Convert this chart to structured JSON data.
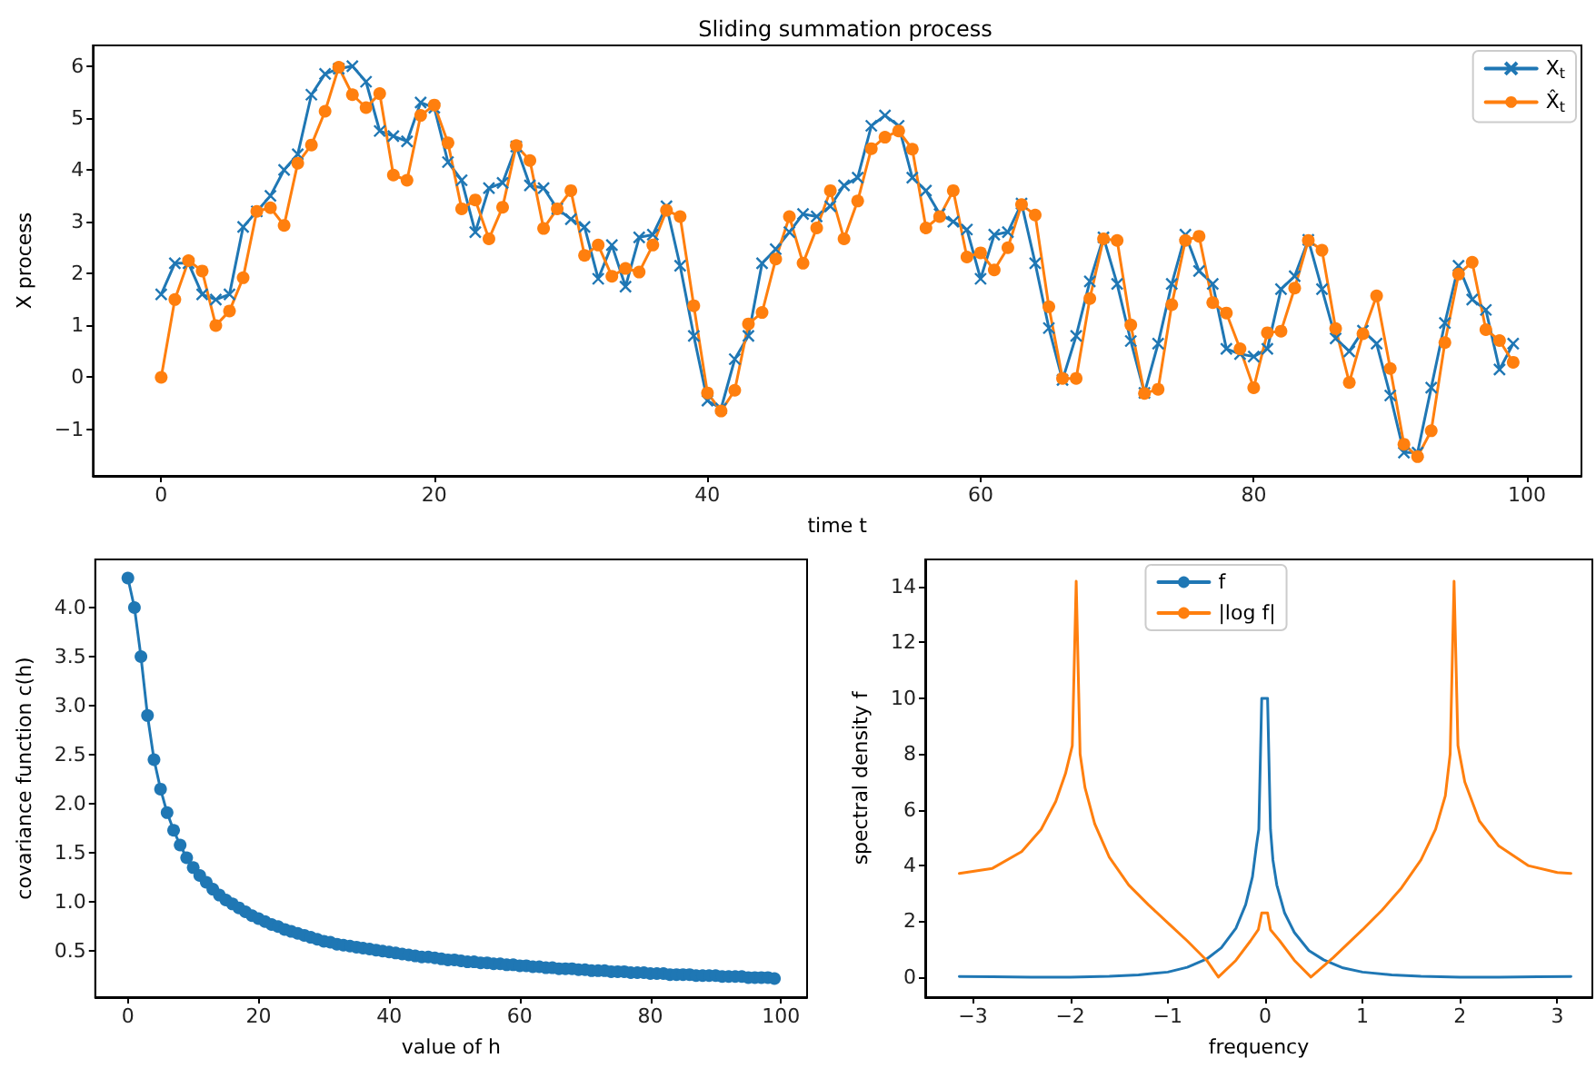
{
  "chart_data": [
    {
      "type": "line",
      "title": "Sliding summation process",
      "xlabel": "time t",
      "ylabel": "X process",
      "legend": "top right",
      "xlim": [
        -5,
        104
      ],
      "ylim": [
        -1.9,
        6.4
      ],
      "xticks": [
        0,
        20,
        40,
        60,
        80,
        100
      ],
      "yticks": [
        -1,
        0,
        1,
        2,
        3,
        4,
        5,
        6
      ],
      "x": [
        0,
        1,
        2,
        3,
        4,
        5,
        6,
        7,
        8,
        9,
        10,
        11,
        12,
        13,
        14,
        15,
        16,
        17,
        18,
        19,
        20,
        21,
        22,
        23,
        24,
        25,
        26,
        27,
        28,
        29,
        30,
        31,
        32,
        33,
        34,
        35,
        36,
        37,
        38,
        39,
        40,
        41,
        42,
        43,
        44,
        45,
        46,
        47,
        48,
        49,
        50,
        51,
        52,
        53,
        54,
        55,
        56,
        57,
        58,
        59,
        60,
        61,
        62,
        63,
        64,
        65,
        66,
        67,
        68,
        69,
        70,
        71,
        72,
        73,
        74,
        75,
        76,
        77,
        78,
        79,
        80,
        81,
        82,
        83,
        84,
        85,
        86,
        87,
        88,
        89,
        90,
        91,
        92,
        93,
        94,
        95,
        96,
        97,
        98,
        99
      ],
      "series": [
        {
          "name": "X$_{t}$",
          "color": "#1f77b4",
          "marker": "cross",
          "values": [
            1.6,
            2.2,
            2.2,
            1.6,
            1.5,
            1.6,
            2.9,
            3.2,
            3.5,
            4.0,
            4.3,
            5.45,
            5.85,
            5.95,
            6.0,
            5.7,
            4.75,
            4.65,
            4.55,
            5.3,
            5.2,
            4.15,
            3.8,
            2.8,
            3.65,
            3.75,
            4.45,
            3.7,
            3.65,
            3.25,
            3.05,
            2.9,
            1.9,
            2.55,
            1.75,
            2.7,
            2.75,
            3.3,
            2.15,
            0.8,
            -0.45,
            -0.6,
            0.35,
            0.8,
            2.2,
            2.47,
            2.8,
            3.15,
            3.1,
            3.3,
            3.7,
            3.85,
            4.85,
            5.05,
            4.85,
            3.85,
            3.6,
            3.15,
            3.0,
            2.85,
            1.9,
            2.75,
            2.8,
            3.35,
            2.2,
            0.95,
            -0.05,
            0.8,
            1.85,
            2.7,
            1.8,
            0.7,
            -0.3,
            0.65,
            1.8,
            2.75,
            2.05,
            1.8,
            0.55,
            0.45,
            0.4,
            0.55,
            1.7,
            1.95,
            2.65,
            1.7,
            0.75,
            0.5,
            0.9,
            0.65,
            -0.35,
            -1.45,
            -1.45,
            -0.2,
            1.05,
            2.15,
            1.5,
            1.3,
            0.15,
            0.65
          ]
        },
        {
          "name": "X̂$_{t}$",
          "color": "#ff7f0e",
          "marker": "circle",
          "values": [
            0.0,
            1.5,
            2.25,
            2.05,
            1.0,
            1.28,
            1.92,
            3.2,
            3.27,
            2.93,
            4.13,
            4.48,
            5.13,
            5.98,
            5.45,
            5.2,
            5.47,
            3.9,
            3.8,
            5.05,
            5.25,
            4.52,
            3.25,
            3.42,
            2.67,
            3.28,
            4.47,
            4.18,
            2.87,
            3.25,
            3.6,
            2.35,
            2.55,
            1.95,
            2.1,
            2.03,
            2.55,
            3.22,
            3.1,
            1.38,
            -0.3,
            -0.65,
            -0.25,
            1.03,
            1.25,
            2.28,
            3.1,
            2.2,
            2.88,
            3.6,
            2.67,
            3.4,
            4.41,
            4.63,
            4.75,
            4.4,
            2.88,
            3.1,
            3.6,
            2.32,
            2.4,
            2.07,
            2.5,
            3.33,
            3.13,
            1.36,
            -0.02,
            -0.02,
            1.52,
            2.67,
            2.64,
            1.01,
            -0.31,
            -0.23,
            1.4,
            2.64,
            2.72,
            1.44,
            1.24,
            0.55,
            -0.2,
            0.86,
            0.89,
            1.72,
            2.64,
            2.45,
            0.94,
            -0.1,
            0.84,
            1.57,
            0.17,
            -1.29,
            -1.53,
            -1.03,
            0.67,
            1.99,
            2.22,
            0.92,
            0.71,
            0.29
          ]
        }
      ]
    },
    {
      "type": "line",
      "xlabel": "value of h",
      "ylabel": "covariance function c(h)",
      "marker": "circle",
      "xlim": [
        -5,
        104
      ],
      "ylim": [
        0.03,
        4.49
      ],
      "xticks": [
        0,
        20,
        40,
        60,
        80,
        100
      ],
      "yticks": [
        {
          "value": 0.5,
          "label": "0.5"
        },
        {
          "value": 1,
          "label": "1.0"
        },
        {
          "value": 1.5,
          "label": "1.5"
        },
        {
          "value": 2,
          "label": "2.0"
        },
        {
          "value": 2.5,
          "label": "2.5"
        },
        {
          "value": 3,
          "label": "3.0"
        },
        {
          "value": 3.5,
          "label": "3.5"
        },
        {
          "value": 4,
          "label": "4.0"
        }
      ],
      "x": [
        0,
        1,
        2,
        3,
        4,
        5,
        6,
        7,
        8,
        9,
        10,
        11,
        12,
        13,
        14,
        15,
        16,
        17,
        18,
        19,
        20,
        21,
        22,
        23,
        24,
        25,
        26,
        27,
        28,
        29,
        30,
        31,
        32,
        33,
        34,
        35,
        36,
        37,
        38,
        39,
        40,
        41,
        42,
        43,
        44,
        45,
        46,
        47,
        48,
        49,
        50,
        51,
        52,
        53,
        54,
        55,
        56,
        57,
        58,
        59,
        60,
        61,
        62,
        63,
        64,
        65,
        66,
        67,
        68,
        69,
        70,
        71,
        72,
        73,
        74,
        75,
        76,
        77,
        78,
        79,
        80,
        81,
        82,
        83,
        84,
        85,
        86,
        87,
        88,
        89,
        90,
        91,
        92,
        93,
        94,
        95,
        96,
        97,
        98,
        99
      ],
      "series": [
        {
          "color": "#1f77b4",
          "values": [
            4.3,
            4.0,
            3.5,
            2.9,
            2.45,
            2.15,
            1.91,
            1.73,
            1.58,
            1.45,
            1.35,
            1.27,
            1.2,
            1.13,
            1.07,
            1.02,
            0.98,
            0.94,
            0.9,
            0.86,
            0.83,
            0.8,
            0.77,
            0.75,
            0.72,
            0.7,
            0.68,
            0.66,
            0.64,
            0.62,
            0.6,
            0.59,
            0.57,
            0.56,
            0.55,
            0.54,
            0.53,
            0.52,
            0.51,
            0.5,
            0.49,
            0.48,
            0.47,
            0.46,
            0.45,
            0.44,
            0.44,
            0.43,
            0.42,
            0.41,
            0.41,
            0.4,
            0.39,
            0.39,
            0.38,
            0.38,
            0.37,
            0.37,
            0.36,
            0.36,
            0.35,
            0.35,
            0.34,
            0.34,
            0.33,
            0.33,
            0.32,
            0.32,
            0.32,
            0.31,
            0.31,
            0.3,
            0.3,
            0.3,
            0.29,
            0.29,
            0.29,
            0.28,
            0.28,
            0.28,
            0.27,
            0.27,
            0.27,
            0.26,
            0.26,
            0.26,
            0.26,
            0.25,
            0.25,
            0.25,
            0.25,
            0.24,
            0.24,
            0.24,
            0.24,
            0.23,
            0.23,
            0.23,
            0.23,
            0.22
          ]
        }
      ]
    },
    {
      "type": "line",
      "xlabel": "frequency",
      "ylabel": "spectral density f",
      "legend": "top",
      "xlim": [
        -3.49,
        3.36
      ],
      "ylim": [
        -0.72,
        14.98
      ],
      "xticks": [
        -3,
        -2,
        -1,
        0,
        1,
        2,
        3
      ],
      "yticks": [
        0,
        2,
        4,
        6,
        8,
        10,
        12,
        14
      ],
      "series": [
        {
          "name": "f",
          "color": "#1f77b4",
          "x": [
            -3.14,
            -2.8,
            -2.4,
            -2.0,
            -1.6,
            -1.3,
            -1.0,
            -0.8,
            -0.6,
            -0.45,
            -0.3,
            -0.2,
            -0.13,
            -0.09,
            -0.065,
            -0.035,
            0.025,
            0.055,
            0.08,
            0.12,
            0.2,
            0.3,
            0.45,
            0.6,
            0.8,
            1.0,
            1.3,
            1.6,
            2.0,
            2.4,
            2.8,
            3.14
          ],
          "values": [
            0.02,
            0.01,
            0,
            0,
            0.03,
            0.08,
            0.18,
            0.35,
            0.65,
            1.05,
            1.75,
            2.6,
            3.6,
            4.7,
            5.3,
            10,
            10,
            5.3,
            4.2,
            3.3,
            2.3,
            1.6,
            0.95,
            0.62,
            0.33,
            0.18,
            0.08,
            0.03,
            0,
            0,
            0.01,
            0.02
          ]
        },
        {
          "name": "|log f|",
          "color": "#ff7f0e",
          "x": [
            -3.14,
            -2.8,
            -2.5,
            -2.3,
            -2.15,
            -2.05,
            -1.98,
            -1.94,
            -1.9,
            -1.85,
            -1.75,
            -1.6,
            -1.4,
            -1.2,
            -1.0,
            -0.8,
            -0.6,
            -0.48,
            -0.3,
            -0.15,
            -0.07,
            -0.035,
            0.025,
            0.055,
            0.15,
            0.3,
            0.47,
            0.7,
            1.0,
            1.2,
            1.4,
            1.6,
            1.75,
            1.85,
            1.9,
            1.94,
            1.98,
            2.05,
            2.2,
            2.4,
            2.7,
            3.0,
            3.14
          ],
          "values": [
            3.72,
            3.9,
            4.5,
            5.3,
            6.3,
            7.3,
            8.3,
            14.2,
            8.0,
            6.8,
            5.5,
            4.3,
            3.3,
            2.6,
            1.95,
            1.3,
            0.6,
            0,
            0.6,
            1.3,
            1.7,
            2.3,
            2.3,
            1.7,
            1.3,
            0.6,
            0,
            0.7,
            1.7,
            2.4,
            3.2,
            4.2,
            5.3,
            6.5,
            8.0,
            14.2,
            8.3,
            7.0,
            5.6,
            4.7,
            4.0,
            3.75,
            3.72
          ]
        }
      ]
    }
  ]
}
